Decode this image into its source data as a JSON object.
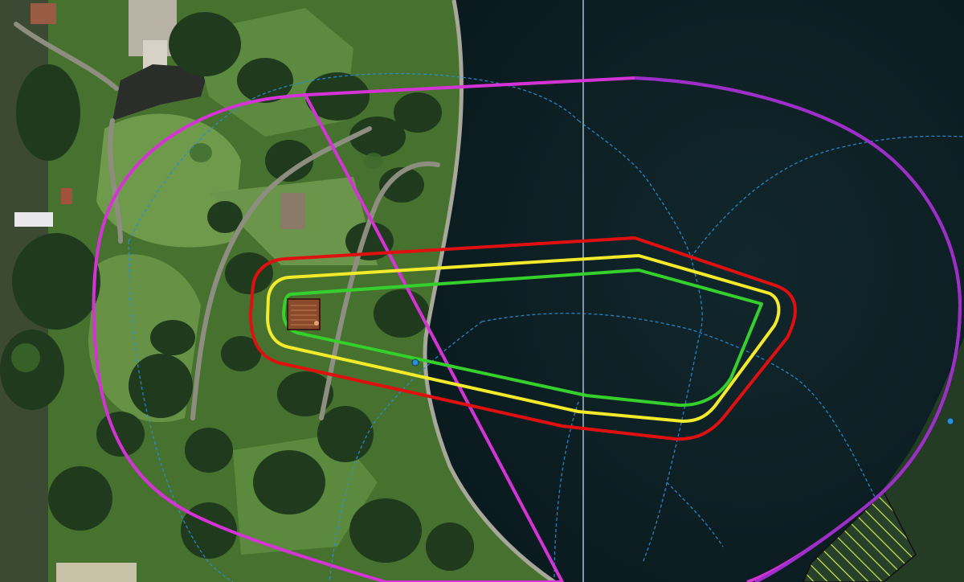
{
  "map": {
    "view": "aerial imagery",
    "colors": {
      "park_grass": "#4f7a35",
      "lawn_light": "#6f9a4c",
      "tree": "#1f3a1c",
      "water": "#0f2227",
      "path": "#8d8d80",
      "outer_zone": "#d633d6",
      "outer_zone_east": "#9b2fc8",
      "zone_red": "#e01010",
      "zone_yellow": "#f2ea2a",
      "zone_green": "#35d02c",
      "source_marker": "#8a4a2c",
      "blue_linework": "#2a8fd4",
      "split_line": "#7e97a4",
      "hatch_area": "#c9e84a"
    },
    "layers": [
      {
        "name": "outer-zone-boundary",
        "color": "#d633d6"
      },
      {
        "name": "red-zone-contour",
        "color": "#e01010"
      },
      {
        "name": "yellow-zone-contour",
        "color": "#f2ea2a"
      },
      {
        "name": "green-zone-contour",
        "color": "#35d02c"
      },
      {
        "name": "source-marker",
        "color": "#8a4a2c"
      },
      {
        "name": "blue-dashed-linework",
        "color": "#2a8fd4"
      },
      {
        "name": "hatched-area",
        "color": "#c9e84a"
      }
    ]
  }
}
